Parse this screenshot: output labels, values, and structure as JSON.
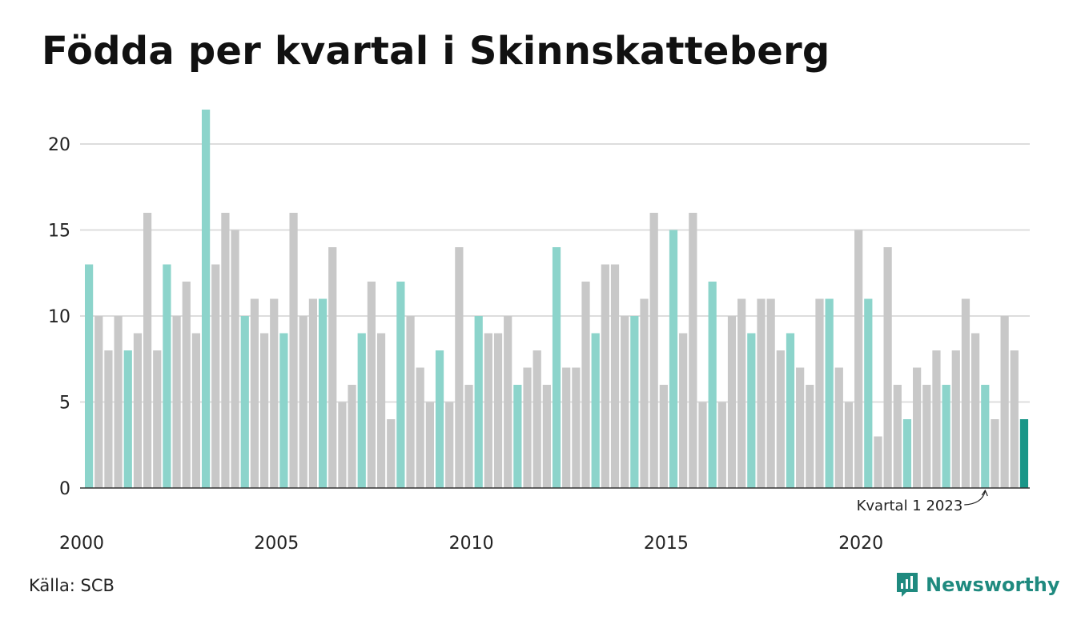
{
  "title": "Födda per kvartal i Skinnskatteberg",
  "source": "Källa: SCB",
  "brand": {
    "name": "Newsworthy",
    "icon": "newsworthy-logo-icon"
  },
  "colors": {
    "highlight": "#8cd4cb",
    "normal": "#c8c8c8",
    "latest": "#1a9688",
    "grid": "#dddddd",
    "axis": "#333333"
  },
  "chart_data": {
    "type": "bar",
    "title": "Födda per kvartal i Skinnskatteberg",
    "xlabel": "",
    "ylabel": "",
    "ylim": [
      0,
      23
    ],
    "yticks": [
      0,
      5,
      10,
      15,
      20
    ],
    "xticks": [
      "2000",
      "2005",
      "2010",
      "2015",
      "2020"
    ],
    "grid": true,
    "first_period": "2000 Q1",
    "highlighted_quarter": "Q1",
    "values": [
      13,
      10,
      8,
      10,
      8,
      9,
      16,
      8,
      13,
      10,
      12,
      9,
      22,
      13,
      16,
      15,
      10,
      11,
      9,
      11,
      9,
      16,
      10,
      11,
      11,
      14,
      5,
      6,
      9,
      12,
      9,
      4,
      12,
      10,
      7,
      5,
      8,
      5,
      14,
      6,
      10,
      9,
      9,
      10,
      6,
      7,
      8,
      6,
      14,
      7,
      7,
      12,
      9,
      13,
      13,
      10,
      10,
      11,
      16,
      6,
      15,
      9,
      16,
      5,
      12,
      5,
      10,
      11,
      9,
      11,
      11,
      8,
      9,
      7,
      6,
      11,
      11,
      7,
      5,
      15,
      11,
      3,
      14,
      6,
      4,
      7,
      6,
      8,
      6,
      8,
      11,
      9,
      6,
      4,
      10,
      8,
      4
    ],
    "annotation": {
      "text": "Kvartal 1 2023",
      "index": 92
    }
  }
}
